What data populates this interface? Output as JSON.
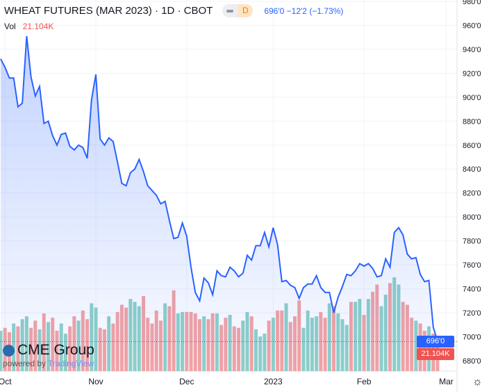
{
  "header": {
    "title": "WHEAT FUTURES (MAR 2023) · 1D · CBOT",
    "interval_badge": "D",
    "last": "696'0",
    "change": "−12'2",
    "change_pct": "(−1.73%)"
  },
  "volume_legend": {
    "label": "Vol",
    "value": "21.104K"
  },
  "price_tag": "696'0",
  "volume_tag": "21.104K",
  "branding": {
    "name": "CME Group",
    "powered": "powered by",
    "tv": "TradingView"
  },
  "colors": {
    "line": "#2962ff",
    "up": "#8fd1c8",
    "down": "#f5a3a3",
    "fill": "#dfe6fc"
  },
  "chart_data": {
    "type": "line",
    "title": "WHEAT FUTURES (MAR 2023) · 1D · CBOT",
    "ylim": [
      672,
      982
    ],
    "y_ticks": [
      980,
      960,
      940,
      920,
      900,
      880,
      860,
      840,
      820,
      800,
      780,
      760,
      740,
      720,
      700,
      680
    ],
    "y_tick_labels": [
      "980'0",
      "960'0",
      "940'0",
      "920'0",
      "900'0",
      "880'0",
      "860'0",
      "840'0",
      "820'0",
      "800'0",
      "780'0",
      "760'0",
      "740'0",
      "720'0",
      "700'0",
      "680'0"
    ],
    "x_labels": [
      {
        "label": "Oct",
        "index": 1
      },
      {
        "label": "Nov",
        "index": 22
      },
      {
        "label": "Dec",
        "index": 43
      },
      {
        "label": "2023",
        "index": 63
      },
      {
        "label": "Feb",
        "index": 84
      },
      {
        "label": "Mar",
        "index": 103
      }
    ],
    "close": [
      932,
      925,
      916,
      916,
      892,
      895,
      951,
      917,
      901,
      909,
      878,
      880,
      868,
      860,
      869,
      870,
      859,
      856,
      860,
      858,
      849,
      898,
      919,
      865,
      860,
      866,
      863,
      846,
      828,
      826,
      837,
      840,
      848,
      838,
      826,
      822,
      818,
      811,
      813,
      797,
      782,
      783,
      795,
      784,
      758,
      737,
      730,
      749,
      745,
      735,
      755,
      751,
      750,
      758,
      755,
      750,
      753,
      768,
      764,
      776,
      776,
      787,
      775,
      791,
      777,
      746,
      747,
      743,
      741,
      732,
      741,
      744,
      744,
      751,
      741,
      737,
      737,
      720,
      733,
      742,
      752,
      751,
      755,
      761,
      759,
      761,
      757,
      750,
      751,
      765,
      758,
      787,
      791,
      785,
      769,
      765,
      766,
      752,
      746,
      747,
      708,
      696
    ],
    "volume_k": [
      28,
      30,
      27,
      33,
      31,
      36,
      38,
      30,
      35,
      29,
      40,
      34,
      37,
      28,
      33,
      26,
      31,
      38,
      35,
      42,
      36,
      47,
      44,
      30,
      29,
      38,
      33,
      41,
      46,
      44,
      50,
      48,
      45,
      52,
      37,
      33,
      42,
      35,
      47,
      45,
      56,
      40,
      41,
      41,
      41,
      40,
      36,
      38,
      36,
      40,
      40,
      32,
      37,
      39,
      31,
      30,
      35,
      41,
      38,
      29,
      24,
      26,
      35,
      37,
      42,
      42,
      47,
      34,
      38,
      49,
      30,
      42,
      37,
      38,
      41,
      37,
      47,
      45,
      40,
      36,
      32,
      48,
      48,
      50,
      39,
      50,
      55,
      60,
      45,
      53,
      61,
      65,
      60,
      48,
      46,
      37,
      35,
      33,
      28,
      31,
      26,
      21.1
    ]
  }
}
